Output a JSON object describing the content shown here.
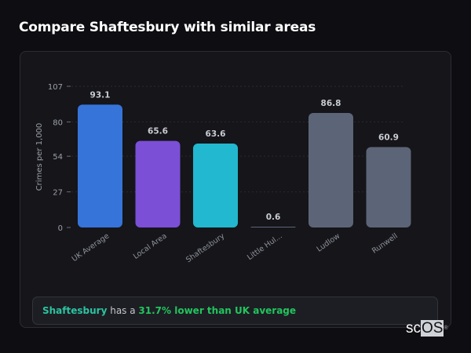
{
  "title": "Compare Shaftesbury with similar areas",
  "chart_data": {
    "type": "bar",
    "ylabel": "Crimes per 1,000",
    "ylim": [
      0,
      107
    ],
    "yticks": [
      0,
      27,
      54,
      80,
      107
    ],
    "grid": true,
    "categories": [
      "UK Average",
      "Local Area",
      "Shaftesbury",
      "Little Hul...",
      "Ludlow",
      "Runwell"
    ],
    "values": [
      93.1,
      65.6,
      63.6,
      0.6,
      86.8,
      60.9
    ],
    "value_labels": [
      "93.1",
      "65.6",
      "63.6",
      "0.6",
      "86.8",
      "60.9"
    ],
    "colors": [
      "#3674d9",
      "#7b4fd6",
      "#22b8cf",
      "#5c6577",
      "#5c6577",
      "#5c6577"
    ]
  },
  "summary": {
    "area": "Shaftesbury",
    "middle": " has a ",
    "comparison": "31.7% lower than UK average"
  },
  "logo": {
    "text": "scOS"
  }
}
